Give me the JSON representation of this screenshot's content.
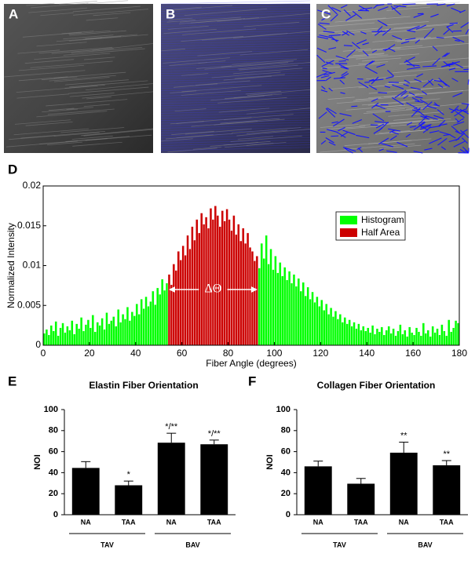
{
  "images": [
    {
      "panel": "A"
    },
    {
      "panel": "B"
    },
    {
      "panel": "C"
    }
  ],
  "chart_data": [
    {
      "type": "histogram",
      "panel": "D",
      "xlabel": "Fiber Angle (degrees)",
      "ylabel": "Normalized Intensity",
      "bins": [
        0,
        1,
        2,
        3,
        4,
        5,
        6,
        7,
        8,
        9,
        10,
        11,
        12,
        13,
        14,
        15,
        16,
        17,
        18,
        19,
        20,
        21,
        22,
        23,
        24,
        25,
        26,
        27,
        28,
        29,
        30,
        31,
        32,
        33,
        34,
        35,
        36,
        37,
        38,
        39,
        40,
        41,
        42,
        43,
        44,
        45,
        46,
        47,
        48,
        49,
        50,
        51,
        52,
        53,
        54,
        55,
        56,
        57,
        58,
        59,
        60,
        61,
        62,
        63,
        64,
        65,
        66,
        67,
        68,
        69,
        70,
        71,
        72,
        73,
        74,
        75,
        76,
        77,
        78,
        79,
        80,
        81,
        82,
        83,
        84,
        85,
        86,
        87,
        88,
        89,
        90,
        91,
        92,
        93,
        94,
        95,
        96,
        97,
        98,
        99,
        100,
        101,
        102,
        103,
        104,
        105,
        106,
        107,
        108,
        109,
        110,
        111,
        112,
        113,
        114,
        115,
        116,
        117,
        118,
        119,
        120,
        121,
        122,
        123,
        124,
        125,
        126,
        127,
        128,
        129,
        130,
        131,
        132,
        133,
        134,
        135,
        136,
        137,
        138,
        139,
        140,
        141,
        142,
        143,
        144,
        145,
        146,
        147,
        148,
        149,
        150,
        151,
        152,
        153,
        154,
        155,
        156,
        157,
        158,
        159,
        160,
        161,
        162,
        163,
        164,
        165,
        166,
        167,
        168,
        169,
        170,
        171,
        172,
        173,
        174,
        175,
        176,
        177,
        178,
        179,
        180
      ],
      "values": [
        0.0015,
        0.002,
        0.0013,
        0.0025,
        0.0018,
        0.003,
        0.0012,
        0.0022,
        0.0028,
        0.0016,
        0.0024,
        0.0019,
        0.0031,
        0.0014,
        0.0027,
        0.0021,
        0.0035,
        0.0018,
        0.0026,
        0.0032,
        0.0022,
        0.0038,
        0.0017,
        0.0029,
        0.0025,
        0.0034,
        0.002,
        0.0041,
        0.0027,
        0.0031,
        0.0036,
        0.0024,
        0.0045,
        0.0029,
        0.0039,
        0.0033,
        0.0048,
        0.0031,
        0.0042,
        0.0037,
        0.0052,
        0.0039,
        0.0058,
        0.0046,
        0.0061,
        0.0049,
        0.0055,
        0.0068,
        0.0051,
        0.0072,
        0.0064,
        0.0083,
        0.0069,
        0.0078,
        0.0089,
        0.0076,
        0.0102,
        0.0094,
        0.0118,
        0.0107,
        0.0125,
        0.0113,
        0.0138,
        0.0121,
        0.0149,
        0.0132,
        0.0158,
        0.0141,
        0.0166,
        0.0152,
        0.0161,
        0.0147,
        0.0172,
        0.0158,
        0.0175,
        0.0163,
        0.0149,
        0.0169,
        0.0156,
        0.0171,
        0.0158,
        0.0144,
        0.0163,
        0.0139,
        0.0152,
        0.0131,
        0.0147,
        0.0128,
        0.0141,
        0.0123,
        0.0118,
        0.0106,
        0.0112,
        0.0097,
        0.0128,
        0.0109,
        0.0138,
        0.0102,
        0.0121,
        0.0095,
        0.0112,
        0.0091,
        0.0104,
        0.0087,
        0.0098,
        0.0082,
        0.0093,
        0.0078,
        0.0089,
        0.0074,
        0.0084,
        0.0068,
        0.0079,
        0.0062,
        0.0073,
        0.0058,
        0.0067,
        0.0054,
        0.0061,
        0.0049,
        0.0057,
        0.0044,
        0.0052,
        0.0039,
        0.0047,
        0.0036,
        0.0043,
        0.0033,
        0.0039,
        0.0029,
        0.0035,
        0.0027,
        0.0032,
        0.0024,
        0.0029,
        0.0021,
        0.0027,
        0.0019,
        0.0024,
        0.0018,
        0.0022,
        0.0016,
        0.0025,
        0.0014,
        0.0021,
        0.0017,
        0.0023,
        0.0013,
        0.0019,
        0.0024,
        0.0015,
        0.0021,
        0.0012,
        0.0018,
        0.0026,
        0.0014,
        0.0019,
        0.0011,
        0.0023,
        0.0016,
        0.0013,
        0.0022,
        0.0017,
        0.0012,
        0.0028,
        0.0015,
        0.0019,
        0.0011,
        0.0024,
        0.0016,
        0.0021,
        0.0013,
        0.0026,
        0.0018,
        0.0012,
        0.0032,
        0.0017,
        0.0022,
        0.0031,
        0.0028
      ],
      "legend": [
        {
          "name": "Histogram",
          "color": "#00ff00"
        },
        {
          "name": "Half Area",
          "color": "#cc0000"
        }
      ],
      "half_area": [
        54,
        93
      ],
      "annotation": "ΔΘ",
      "xlim": [
        0,
        180
      ],
      "xticks": [
        0,
        20,
        40,
        60,
        80,
        100,
        120,
        140,
        160,
        180
      ],
      "ylim": [
        0,
        0.02
      ],
      "yticks": [
        0,
        0.005,
        0.01,
        0.015,
        0.02
      ],
      "legend_position": "upper right"
    },
    {
      "type": "bar",
      "panel": "E",
      "title": "Elastin Fiber Orientation",
      "ylabel": "NOI",
      "categories": [
        "NA",
        "TAA",
        "NA",
        "TAA"
      ],
      "groups": [
        "TAV",
        "BAV"
      ],
      "values": [
        44.5,
        28,
        68.5,
        67
      ],
      "errors": [
        6,
        4,
        9,
        4
      ],
      "annotations": [
        null,
        "*",
        "*/**",
        "*/**"
      ],
      "color": "#000000",
      "ylim": [
        0,
        100
      ],
      "yticks": [
        0,
        20,
        40,
        60,
        80,
        100
      ]
    },
    {
      "type": "bar",
      "panel": "F",
      "title": "Collagen Fiber Orientation",
      "ylabel": "NOI",
      "categories": [
        "NA",
        "TAA",
        "NA",
        "TAA"
      ],
      "groups": [
        "TAV",
        "BAV"
      ],
      "values": [
        46,
        29.5,
        59,
        47
      ],
      "errors": [
        5,
        5,
        10,
        4.5
      ],
      "annotations": [
        null,
        null,
        "**",
        "**"
      ],
      "color": "#000000",
      "ylim": [
        0,
        100
      ],
      "yticks": [
        0,
        20,
        40,
        60,
        80,
        100
      ]
    }
  ]
}
